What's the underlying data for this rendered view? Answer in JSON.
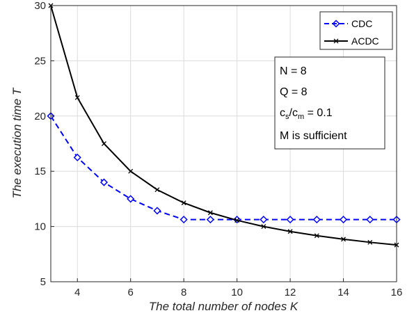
{
  "chart_data": {
    "type": "line",
    "title": "",
    "xlabel": "The total number of nodes K",
    "ylabel": "The execution time T",
    "xlim": [
      3,
      16
    ],
    "ylim": [
      5,
      30
    ],
    "x": [
      3,
      4,
      5,
      6,
      7,
      8,
      9,
      10,
      11,
      12,
      13,
      14,
      15,
      16
    ],
    "x_ticks": [
      4,
      6,
      8,
      10,
      12,
      14,
      16
    ],
    "y_ticks": [
      5,
      10,
      15,
      20,
      25,
      30
    ],
    "grid": true,
    "legend_position": "top-right",
    "series": [
      {
        "name": "CDC",
        "color": "#0000ff",
        "line_style": "dashed",
        "marker": "diamond",
        "values": [
          20.0,
          16.25,
          14.0,
          12.5,
          11.43,
          10.63,
          10.63,
          10.63,
          10.63,
          10.63,
          10.63,
          10.63,
          10.63,
          10.63
        ]
      },
      {
        "name": "ACDC",
        "color": "#000000",
        "line_style": "solid",
        "marker": "x",
        "values": [
          30.0,
          21.67,
          17.5,
          15.0,
          13.33,
          12.14,
          11.25,
          10.56,
          10.0,
          9.55,
          9.17,
          8.85,
          8.57,
          8.33
        ]
      }
    ],
    "annotation": {
      "line1": "N = 8",
      "line2": "Q = 8",
      "line3_base1": "c",
      "line3_sub1": "s",
      "line3_slash": "/c",
      "line3_sub2": "m",
      "line3_tail": " = 0.1",
      "line4": "M is sufficient"
    }
  }
}
